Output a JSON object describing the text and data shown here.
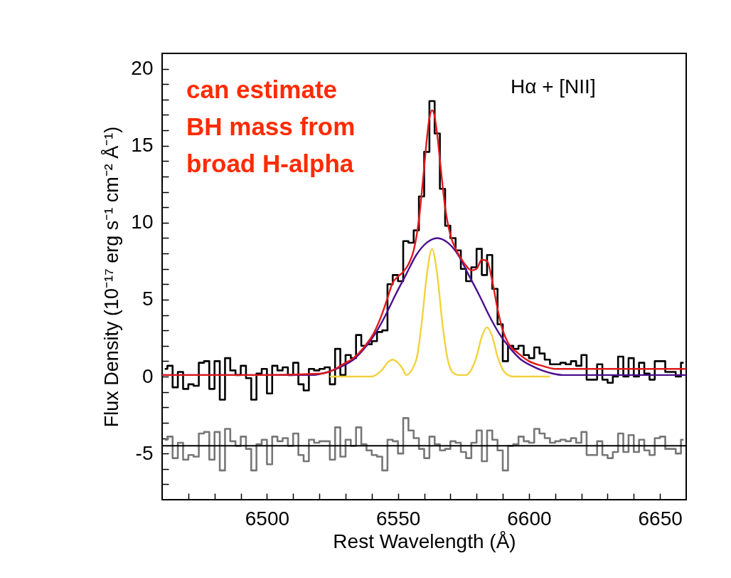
{
  "chart_data": {
    "type": "line",
    "xlabel": "Rest Wavelength (Å)",
    "ylabel": "Flux Density (10⁻¹⁷ erg s⁻¹ cm⁻² Å⁻¹)",
    "annotations": [
      "Hα + [NII]",
      "can estimate\nBH mass from\nbroad H-alpha"
    ],
    "xlim": [
      6460,
      6660
    ],
    "ylim": [
      -8,
      21
    ],
    "xticks": [
      {
        "value": 6470,
        "label": null
      },
      {
        "value": 6480,
        "label": null
      },
      {
        "value": 6490,
        "label": null
      },
      6500,
      {
        "value": 6510,
        "label": null
      },
      {
        "value": 6520,
        "label": null
      },
      {
        "value": 6530,
        "label": null
      },
      {
        "value": 6540,
        "label": null
      },
      6550,
      {
        "value": 6560,
        "label": null
      },
      {
        "value": 6570,
        "label": null
      },
      {
        "value": 6580,
        "label": null
      },
      {
        "value": 6590,
        "label": null
      },
      6600,
      {
        "value": 6610,
        "label": null
      },
      {
        "value": 6620,
        "label": null
      },
      {
        "value": 6630,
        "label": null
      },
      {
        "value": 6640,
        "label": null
      },
      6650
    ],
    "yticks": [
      {
        "value": -7,
        "label": null
      },
      {
        "value": -6,
        "label": null
      },
      -5,
      {
        "value": -4,
        "label": null
      },
      {
        "value": -3,
        "label": null
      },
      {
        "value": -2,
        "label": null
      },
      {
        "value": -1,
        "label": null
      },
      0,
      {
        "value": 1,
        "label": null
      },
      {
        "value": 2,
        "label": null
      },
      {
        "value": 3,
        "label": null
      },
      {
        "value": 4,
        "label": null
      },
      5,
      {
        "value": 6,
        "label": null
      },
      {
        "value": 7,
        "label": null
      },
      {
        "value": 8,
        "label": null
      },
      {
        "value": 9,
        "label": null
      },
      10,
      {
        "value": 11,
        "label": null
      },
      {
        "value": 12,
        "label": null
      },
      {
        "value": 13,
        "label": null
      },
      {
        "value": 14,
        "label": null
      },
      15,
      {
        "value": 16,
        "label": null
      },
      {
        "value": 17,
        "label": null
      },
      {
        "value": 18,
        "label": null
      },
      {
        "value": 19,
        "label": null
      },
      20
    ],
    "grid": false,
    "ref_lines": [
      {
        "axis": "y",
        "value": -4.5,
        "color": "#000000"
      }
    ],
    "series": [
      {
        "type": "step",
        "color": "#000000",
        "x": [
          6461,
          6463,
          6465,
          6467,
          6469,
          6471,
          6473,
          6475,
          6477,
          6479,
          6481,
          6483,
          6485,
          6487,
          6489,
          6491,
          6493,
          6495,
          6497,
          6499,
          6501,
          6503,
          6505,
          6507,
          6509,
          6511,
          6513,
          6515,
          6517,
          6519,
          6521,
          6523,
          6525,
          6527,
          6529,
          6531,
          6533,
          6535,
          6537,
          6539,
          6541,
          6543,
          6545,
          6547,
          6549,
          6551,
          6553,
          6555,
          6557,
          6559,
          6561,
          6563,
          6565,
          6567,
          6569,
          6571,
          6573,
          6575,
          6577,
          6579,
          6581,
          6583,
          6585,
          6587,
          6589,
          6591,
          6593,
          6595,
          6597,
          6599,
          6601,
          6603,
          6605,
          6607,
          6609,
          6611,
          6613,
          6615,
          6617,
          6619,
          6621,
          6623,
          6625,
          6627,
          6629,
          6631,
          6633,
          6635,
          6637,
          6639,
          6641,
          6643,
          6645,
          6647,
          6649,
          6651,
          6653,
          6655,
          6657,
          6659
        ],
        "values": [
          0.5,
          0.7,
          -0.7,
          0.3,
          -0.8,
          -0.5,
          -0.6,
          0.9,
          1.0,
          -0.8,
          1.0,
          -1.5,
          1.2,
          0.4,
          0.1,
          0.7,
          -0.1,
          -1.5,
          0.2,
          0.5,
          -1.1,
          0.7,
          0.4,
          0.6,
          0.1,
          0.9,
          -0.5,
          -0.9,
          0.5,
          0.4,
          0.5,
          0.6,
          -0.5,
          1.8,
          0.1,
          1.4,
          1.2,
          2.7,
          2.0,
          2.1,
          2.3,
          2.9,
          3.0,
          6.0,
          6.6,
          6.2,
          8.8,
          8.7,
          9.5,
          11.7,
          14.6,
          17.9,
          15.8,
          12.2,
          9.8,
          9.0,
          8.2,
          7.0,
          6.2,
          7.1,
          8.3,
          6.6,
          7.9,
          5.7,
          3.4,
          1.0,
          2.0,
          1.8,
          2.0,
          1.4,
          1.2,
          1.9,
          1.5,
          1.1,
          0.8,
          0.8,
          0.9,
          0.8,
          1.0,
          0.7,
          1.4,
          -0.2,
          -0.2,
          0.8,
          -0.2,
          -0.4,
          0,
          1.3,
          0,
          1.2,
          0,
          0.9,
          0.2,
          -0.2,
          1.0,
          1.0,
          0.3,
          0.3,
          0,
          0.9
        ]
      },
      {
        "type": "step",
        "color": "#777777",
        "x": [
          6461,
          6463,
          6465,
          6467,
          6469,
          6471,
          6473,
          6475,
          6477,
          6479,
          6481,
          6483,
          6485,
          6487,
          6489,
          6491,
          6493,
          6495,
          6497,
          6499,
          6501,
          6503,
          6505,
          6507,
          6509,
          6511,
          6513,
          6515,
          6517,
          6519,
          6521,
          6523,
          6525,
          6527,
          6529,
          6531,
          6533,
          6535,
          6537,
          6539,
          6541,
          6543,
          6545,
          6547,
          6549,
          6551,
          6553,
          6555,
          6557,
          6559,
          6561,
          6563,
          6565,
          6567,
          6569,
          6571,
          6573,
          6575,
          6577,
          6579,
          6581,
          6583,
          6585,
          6587,
          6589,
          6591,
          6593,
          6595,
          6597,
          6599,
          6601,
          6603,
          6605,
          6607,
          6609,
          6611,
          6613,
          6615,
          6617,
          6619,
          6621,
          6623,
          6625,
          6627,
          6629,
          6631,
          6633,
          6635,
          6637,
          6639,
          6641,
          6643,
          6645,
          6647,
          6649,
          6651,
          6653,
          6655,
          6657,
          6659
        ],
        "values": [
          -4.1,
          -3.9,
          -5.3,
          -4.3,
          -5.4,
          -5.1,
          -5.2,
          -3.7,
          -3.6,
          -5.4,
          -3.6,
          -6.1,
          -3.4,
          -4.2,
          -4.5,
          -3.9,
          -4.7,
          -6.1,
          -4.4,
          -4.1,
          -5.7,
          -3.9,
          -4.2,
          -4.0,
          -4.5,
          -3.7,
          -5.1,
          -5.5,
          -4.1,
          -4.3,
          -4.2,
          -4.2,
          -5.4,
          -3.3,
          -5.2,
          -4.1,
          -4.5,
          -3.3,
          -4.4,
          -4.8,
          -5.1,
          -5.2,
          -6.1,
          -4.1,
          -4.2,
          -5.0,
          -2.7,
          -3.5,
          -4.0,
          -4.7,
          -5.3,
          -3.9,
          -4.4,
          -4.8,
          -4.7,
          -4.2,
          -4.3,
          -4.9,
          -5.3,
          -4.3,
          -3.5,
          -5.5,
          -3.5,
          -4.1,
          -4.8,
          -6.1,
          -4.5,
          -4.4,
          -3.9,
          -4.2,
          -4.3,
          -3.4,
          -3.7,
          -4.0,
          -4.3,
          -4.2,
          -4.1,
          -4.2,
          -4.0,
          -4.3,
          -3.6,
          -5.1,
          -5.1,
          -4.2,
          -5.1,
          -5.3,
          -4.9,
          -3.7,
          -4.9,
          -3.8,
          -4.9,
          -4.1,
          -4.8,
          -5.1,
          -4.0,
          -3.9,
          -4.7,
          -4.7,
          -5.0,
          -4.1
        ]
      },
      {
        "type": "line",
        "color": "#f2d23c",
        "x": [
          6524,
          6540,
          6542,
          6544,
          6546,
          6548,
          6550,
          6552,
          6553,
          6557,
          6559,
          6561,
          6563,
          6565,
          6567,
          6569,
          6571,
          6573,
          6576,
          6578,
          6580,
          6582,
          6584,
          6586,
          6588,
          6590,
          6592,
          6594,
          6608
        ],
        "values": [
          0,
          0,
          0.15,
          0.45,
          0.9,
          1.1,
          0.9,
          0.45,
          0.1,
          1.1,
          3.4,
          6.6,
          8.3,
          6.6,
          3.4,
          1.1,
          0.25,
          0.1,
          0.1,
          0.45,
          1.3,
          2.6,
          3.2,
          2.6,
          1.3,
          0.45,
          0.1,
          0,
          0
        ]
      },
      {
        "type": "line",
        "color": "#4b0f8f",
        "x": [
          6460,
          6517,
          6521,
          6525,
          6529,
          6533,
          6537,
          6541,
          6545,
          6549,
          6553,
          6557,
          6561,
          6565,
          6569,
          6573,
          6577,
          6581,
          6585,
          6589,
          6593,
          6597,
          6601,
          6605,
          6609,
          6613,
          6660
        ],
        "values": [
          0.1,
          0.1,
          0.2,
          0.4,
          0.7,
          1.1,
          1.8,
          2.7,
          3.9,
          5.3,
          6.6,
          7.9,
          8.7,
          9.0,
          8.7,
          7.9,
          6.6,
          5.3,
          3.9,
          2.7,
          1.8,
          1.1,
          0.7,
          0.4,
          0.2,
          0.1,
          0.1
        ]
      },
      {
        "type": "line",
        "color": "#e0191b",
        "x": [
          6460,
          6500,
          6521,
          6525,
          6529,
          6533,
          6537,
          6541,
          6544,
          6546,
          6548,
          6550,
          6552,
          6554,
          6556,
          6558,
          6560,
          6561,
          6562,
          6563,
          6564,
          6565,
          6566,
          6568,
          6570,
          6572,
          6574,
          6576,
          6578,
          6580,
          6582,
          6584,
          6586,
          6588,
          6590,
          6592,
          6596,
          6600,
          6605,
          6610,
          6620,
          6660
        ],
        "values": [
          0.1,
          0.1,
          0.2,
          0.4,
          0.8,
          1.2,
          1.9,
          2.9,
          4.1,
          5.1,
          6.1,
          6.5,
          6.8,
          7.3,
          8.2,
          10.2,
          13.6,
          15.4,
          16.8,
          17.3,
          16.9,
          15.7,
          14.1,
          11.0,
          9.2,
          8.3,
          7.7,
          7.2,
          6.9,
          7.0,
          7.6,
          7.5,
          6.2,
          4.4,
          3.0,
          2.2,
          1.5,
          1.0,
          0.7,
          0.5,
          0.5,
          0.5
        ]
      }
    ]
  }
}
